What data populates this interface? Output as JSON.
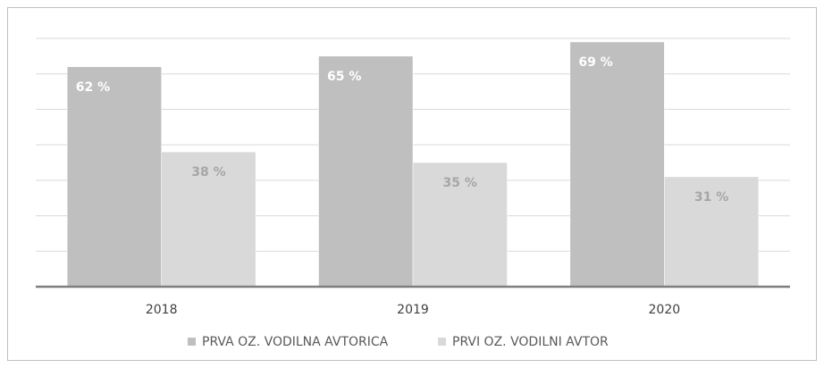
{
  "chart_data": {
    "type": "bar",
    "categories": [
      "2018",
      "2019",
      "2020"
    ],
    "series": [
      {
        "name": "PRVA OZ. VODILNA AVTORICA",
        "color": "#bfbfbf",
        "values": [
          62,
          65,
          69
        ],
        "value_labels": [
          "62 %",
          "65 %",
          "69 %"
        ]
      },
      {
        "name": "PRVI OZ. VODILNI AVTOR",
        "color": "#d9d9d9",
        "values": [
          38,
          35,
          31
        ],
        "value_labels": [
          "38 %",
          "35 %",
          "31 %"
        ]
      }
    ],
    "ylim": [
      0,
      70
    ],
    "yticks": [
      0,
      10,
      20,
      30,
      40,
      50,
      60,
      70
    ],
    "grid": true,
    "legend": "bottom"
  }
}
